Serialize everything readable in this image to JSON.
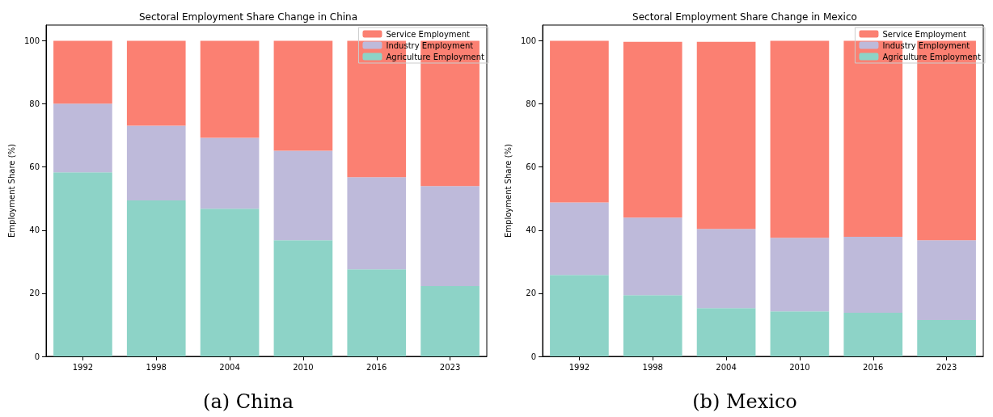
{
  "chart_data": [
    {
      "type": "bar",
      "title": "Sectoral Employment Share Change in China",
      "ylabel": "Employment Share (%)",
      "categories": [
        "1992",
        "1998",
        "2004",
        "2010",
        "2016",
        "2023"
      ],
      "stacked": true,
      "ylim": [
        0,
        105
      ],
      "yticks": [
        0,
        20,
        40,
        60,
        80,
        100
      ],
      "grid": false,
      "legend": "top right",
      "annotations": [
        "(a) China"
      ],
      "series": [
        {
          "name": "Agriculture Employment",
          "color": "#8dd3c7",
          "values": [
            58.3,
            49.4,
            46.8,
            36.8,
            27.6,
            22.3
          ]
        },
        {
          "name": "Industry Employment",
          "color": "#bebada",
          "values": [
            21.8,
            23.7,
            22.5,
            28.4,
            29.2,
            31.7
          ]
        },
        {
          "name": "Service Employment",
          "color": "#fb8072",
          "values": [
            19.9,
            26.9,
            30.7,
            34.8,
            43.2,
            46.0
          ]
        }
      ]
    },
    {
      "type": "bar",
      "title": "Sectoral Employment Share Change in Mexico",
      "ylabel": "Employment Share (%)",
      "categories": [
        "1992",
        "1998",
        "2004",
        "2010",
        "2016",
        "2023"
      ],
      "stacked": true,
      "ylim": [
        0,
        105
      ],
      "yticks": [
        0,
        20,
        40,
        60,
        80,
        100
      ],
      "grid": false,
      "legend": "top right",
      "annotations": [
        "(b) Mexico"
      ],
      "series": [
        {
          "name": "Agriculture Employment",
          "color": "#8dd3c7",
          "values": [
            25.8,
            19.4,
            15.3,
            14.3,
            13.8,
            11.5
          ]
        },
        {
          "name": "Industry Employment",
          "color": "#bebada",
          "values": [
            23.0,
            24.6,
            25.1,
            23.3,
            24.1,
            25.3
          ]
        },
        {
          "name": "Service Employment",
          "color": "#fb8072",
          "values": [
            51.2,
            55.7,
            59.3,
            62.4,
            62.1,
            63.2
          ]
        }
      ]
    }
  ]
}
